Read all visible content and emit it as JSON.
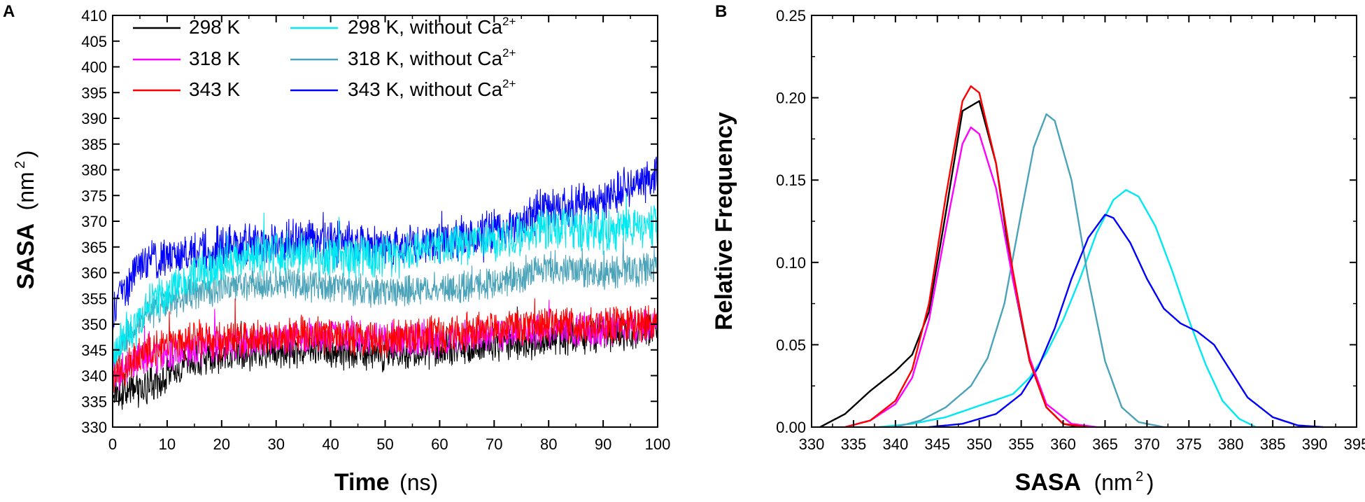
{
  "colors": {
    "black": "#000000",
    "magenta": "#ff00ff",
    "red": "#ff0000",
    "cyan": "#00e8f0",
    "steel": "#4aa3b8",
    "blue": "#0000ff"
  },
  "chart_data": [
    {
      "id": "A",
      "panel_label": "A",
      "type": "line",
      "title": "",
      "xlabel_bold": "Time",
      "xlabel_unit": "(ns)",
      "ylabel_bold": "SASA",
      "ylabel_unit_pre": "(nm",
      "ylabel_unit_sup": "2",
      "ylabel_unit_post": ")",
      "xlim": [
        0,
        100
      ],
      "ylim": [
        330,
        410
      ],
      "xticks": [
        0,
        10,
        20,
        30,
        40,
        50,
        60,
        70,
        80,
        90,
        100
      ],
      "yticks": [
        330,
        335,
        340,
        345,
        350,
        355,
        360,
        365,
        370,
        375,
        380,
        385,
        390,
        395,
        400,
        405,
        410
      ],
      "legend_position": "top-left",
      "series": [
        {
          "name": "298 K",
          "color": "black",
          "x": [
            0,
            5,
            10,
            15,
            20,
            30,
            40,
            50,
            60,
            70,
            80,
            90,
            100
          ],
          "values": [
            337,
            337,
            340,
            343,
            344,
            345,
            345,
            344,
            345,
            346,
            347,
            348,
            349
          ],
          "noise": 3
        },
        {
          "name": "318 K",
          "color": "magenta",
          "x": [
            0,
            5,
            10,
            15,
            20,
            30,
            40,
            50,
            60,
            70,
            80,
            90,
            100
          ],
          "values": [
            340,
            343,
            344,
            345,
            346,
            347,
            348,
            347,
            347,
            348,
            349,
            349,
            350
          ],
          "noise": 3
        },
        {
          "name": "343 K",
          "color": "red",
          "x": [
            0,
            5,
            10,
            15,
            20,
            30,
            40,
            50,
            60,
            70,
            80,
            90,
            100
          ],
          "values": [
            340,
            344,
            346,
            347,
            347,
            348,
            348,
            347,
            348,
            349,
            350,
            350,
            350
          ],
          "noise": 3.2
        },
        {
          "name": "298 K, without Ca",
          "sup": "2+",
          "color": "cyan",
          "x": [
            0,
            5,
            10,
            15,
            20,
            30,
            40,
            50,
            60,
            70,
            80,
            90,
            100
          ],
          "values": [
            344,
            352,
            356,
            360,
            362,
            364,
            363,
            363,
            365,
            366,
            369,
            368,
            369
          ],
          "noise": 3.6
        },
        {
          "name": "318 K, without Ca",
          "sup": "2+",
          "color": "steel",
          "x": [
            0,
            5,
            10,
            15,
            20,
            30,
            40,
            50,
            60,
            70,
            80,
            90,
            100
          ],
          "values": [
            343,
            351,
            354,
            356,
            357,
            358,
            357,
            356,
            357,
            358,
            361,
            360,
            361
          ],
          "noise": 2.8
        },
        {
          "name": "343 K, without Ca",
          "sup": "2+",
          "color": "blue",
          "x": [
            0,
            5,
            10,
            15,
            20,
            30,
            40,
            50,
            60,
            70,
            80,
            90,
            100
          ],
          "values": [
            352,
            362,
            363,
            364,
            365,
            366,
            366,
            365,
            366,
            368,
            372,
            374,
            379
          ],
          "noise": 3.6
        }
      ]
    },
    {
      "id": "B",
      "panel_label": "B",
      "type": "line",
      "title": "",
      "xlabel_bold": "SASA",
      "xlabel_unit_pre": "(nm",
      "xlabel_unit_sup": "2",
      "xlabel_unit_post": ")",
      "ylabel": "Relative Frequency",
      "xlim": [
        330,
        395
      ],
      "ylim": [
        0,
        0.25
      ],
      "xticks": [
        330,
        335,
        340,
        345,
        350,
        355,
        360,
        365,
        370,
        375,
        380,
        385,
        390,
        395
      ],
      "yticks": [
        "0.00",
        "0.05",
        "0.10",
        "0.15",
        "0.20",
        "0.25"
      ],
      "series": [
        {
          "name": "298 K",
          "color": "black",
          "x": [
            331,
            334,
            337,
            340,
            342,
            344,
            346,
            348,
            350,
            352,
            354,
            356,
            358,
            360,
            362
          ],
          "values": [
            0,
            0.008,
            0.022,
            0.034,
            0.044,
            0.07,
            0.13,
            0.192,
            0.198,
            0.16,
            0.09,
            0.04,
            0.012,
            0.002,
            0
          ]
        },
        {
          "name": "318 K",
          "color": "magenta",
          "x": [
            334,
            337,
            340,
            342,
            344,
            346,
            348,
            349,
            350,
            352,
            354,
            356,
            358,
            361,
            364
          ],
          "values": [
            0,
            0.004,
            0.014,
            0.03,
            0.065,
            0.12,
            0.172,
            0.182,
            0.178,
            0.145,
            0.09,
            0.042,
            0.014,
            0.002,
            0
          ]
        },
        {
          "name": "343 K",
          "color": "red",
          "x": [
            334,
            337,
            340,
            342,
            344,
            346,
            348,
            349,
            350,
            352,
            354,
            356,
            358,
            360,
            363
          ],
          "values": [
            0,
            0.004,
            0.016,
            0.035,
            0.075,
            0.14,
            0.198,
            0.207,
            0.203,
            0.16,
            0.095,
            0.04,
            0.012,
            0.002,
            0
          ]
        },
        {
          "name": "298 K, without Ca2+",
          "color": "cyan",
          "x": [
            338,
            342,
            346,
            350,
            354,
            356,
            358,
            360,
            362,
            364,
            366,
            367.5,
            369,
            371,
            373,
            375,
            377,
            379,
            381,
            383
          ],
          "values": [
            0,
            0.002,
            0.006,
            0.013,
            0.02,
            0.03,
            0.045,
            0.065,
            0.09,
            0.118,
            0.138,
            0.144,
            0.14,
            0.122,
            0.095,
            0.065,
            0.038,
            0.016,
            0.005,
            0
          ]
        },
        {
          "name": "318 K, without Ca2+",
          "color": "steel",
          "x": [
            340,
            343,
            346,
            349,
            351,
            353,
            355,
            356.5,
            358,
            359,
            361,
            363,
            365,
            367,
            369,
            372
          ],
          "values": [
            0,
            0.004,
            0.012,
            0.025,
            0.042,
            0.075,
            0.13,
            0.17,
            0.19,
            0.186,
            0.15,
            0.09,
            0.04,
            0.012,
            0.003,
            0
          ]
        },
        {
          "name": "343 K, without Ca2+",
          "color": "blue",
          "x": [
            344,
            348,
            352,
            355,
            357,
            359,
            361,
            363,
            365,
            366,
            368,
            370,
            372,
            374,
            376,
            378,
            380,
            382,
            385,
            388,
            391
          ],
          "values": [
            0,
            0.002,
            0.008,
            0.02,
            0.036,
            0.06,
            0.09,
            0.115,
            0.129,
            0.127,
            0.112,
            0.09,
            0.072,
            0.063,
            0.058,
            0.05,
            0.034,
            0.018,
            0.006,
            0.001,
            0
          ]
        }
      ]
    }
  ]
}
